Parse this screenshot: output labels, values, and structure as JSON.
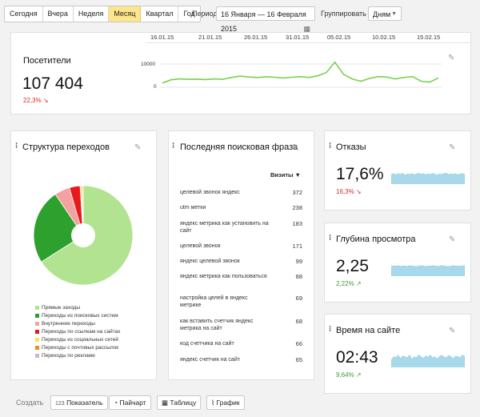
{
  "toolbar": {
    "periods": [
      "Сегодня",
      "Вчера",
      "Неделя",
      "Месяц",
      "Квартал",
      "Год"
    ],
    "active_period": "Месяц",
    "period_label": "Период",
    "date_range": "16 Января — 16 Февраля 2015",
    "group_label": "Группировать по",
    "group_value": "Дням",
    "accent_color": "#fde58c"
  },
  "visitors": {
    "title": "Посетители",
    "value": "107 404",
    "change": "22,3%",
    "dates": [
      "16.01.15",
      "21.01.15",
      "26.01.15",
      "31.01.15",
      "05.02.15",
      "10.02.15",
      "15.02.15"
    ],
    "yticks": [
      "10000",
      "0"
    ],
    "series": [
      1800,
      3200,
      3600,
      3400,
      3500,
      3300,
      3600,
      3400,
      4200,
      4800,
      4400,
      4200,
      4500,
      4300,
      4000,
      4300,
      4600,
      4200,
      4900,
      6300,
      10800,
      5600,
      3600,
      2600,
      3800,
      4600,
      4400,
      3600,
      4200,
      4600,
      2600,
      2200,
      4000
    ]
  },
  "sources": {
    "title": "Структура переходов",
    "chart_data": {
      "type": "pie",
      "title": "Структура переходов",
      "labels": [
        "Прямые заходы",
        "Переходы из поисковых систем",
        "Внутренние переходы",
        "Переходы по ссылкам на сайтах",
        "Переходы из социальных сетей",
        "Переходы с почтовых рассылок",
        "Переходы по рекламе"
      ],
      "values": [
        66,
        24.5,
        5,
        3.5,
        0.5,
        0.4,
        0.1
      ],
      "colors": [
        "#b2e391",
        "#2ea02e",
        "#f4a1a0",
        "#e8191c",
        "#f6e35e",
        "#f58a1f",
        "#d1b2db"
      ]
    }
  },
  "phrases": {
    "title": "Последняя поисковая фраза",
    "col_header": "Визиты",
    "rows": [
      {
        "text": "целевой звонок яндекс",
        "value": "372"
      },
      {
        "text": "utm метки",
        "value": "238"
      },
      {
        "text": "яндекс метрика как установить на сайт",
        "value": "183"
      },
      {
        "text": "целевой звонок",
        "value": "171"
      },
      {
        "text": "яндекс целевой звонок",
        "value": "99"
      },
      {
        "text": "яндекс метрика как пользоваться",
        "value": "88"
      },
      {
        "text": "настройка целей в яндекс метрике",
        "value": "69"
      },
      {
        "text": "как вставить счетчик яндекс метрика на сайт",
        "value": "68"
      },
      {
        "text": "код счетчика на сайт",
        "value": "66"
      },
      {
        "text": "яндекс счетчик на сайт",
        "value": "65"
      }
    ]
  },
  "kpis": [
    {
      "title": "Отказы",
      "value": "17,6%",
      "change": "16,3%",
      "trend": "down",
      "spark": [
        0.55,
        0.6,
        0.52,
        0.6,
        0.55,
        0.62,
        0.5,
        0.58,
        0.55,
        0.6,
        0.53,
        0.58,
        0.62,
        0.55,
        0.6,
        0.52,
        0.58,
        0.55,
        0.6,
        0.57,
        0.5,
        0.58,
        0.55,
        0.6,
        0.62,
        0.54,
        0.58,
        0.55,
        0.6,
        0.52,
        0.58,
        0.6,
        0.55
      ]
    },
    {
      "title": "Глубина просмотра",
      "value": "2,25",
      "change": "2,22%",
      "trend": "up",
      "spark": [
        0.55,
        0.58,
        0.56,
        0.6,
        0.55,
        0.58,
        0.57,
        0.55,
        0.6,
        0.58,
        0.56,
        0.55,
        0.58,
        0.6,
        0.57,
        0.55,
        0.58,
        0.56,
        0.6,
        0.58,
        0.55,
        0.57,
        0.6,
        0.58,
        0.56,
        0.55,
        0.58,
        0.6,
        0.56,
        0.58,
        0.55,
        0.6,
        0.58
      ]
    },
    {
      "title": "Время на сайте",
      "value": "02:43",
      "change": "9,64%",
      "trend": "up",
      "spark": [
        0.4,
        0.6,
        0.55,
        0.7,
        0.5,
        0.65,
        0.6,
        0.55,
        0.7,
        0.45,
        0.6,
        0.55,
        0.72,
        0.6,
        0.5,
        0.65,
        0.58,
        0.7,
        0.55,
        0.6,
        0.48,
        0.62,
        0.7,
        0.58,
        0.55,
        0.68,
        0.6,
        0.5,
        0.65,
        0.6,
        0.55,
        0.7,
        0.62
      ]
    }
  ],
  "footer": {
    "create_label": "Создать",
    "buttons": [
      {
        "icon": "123",
        "label": "Показатель"
      },
      {
        "label": "Пайчарт"
      },
      {
        "label": "Таблицу"
      },
      {
        "label": "График"
      }
    ]
  }
}
